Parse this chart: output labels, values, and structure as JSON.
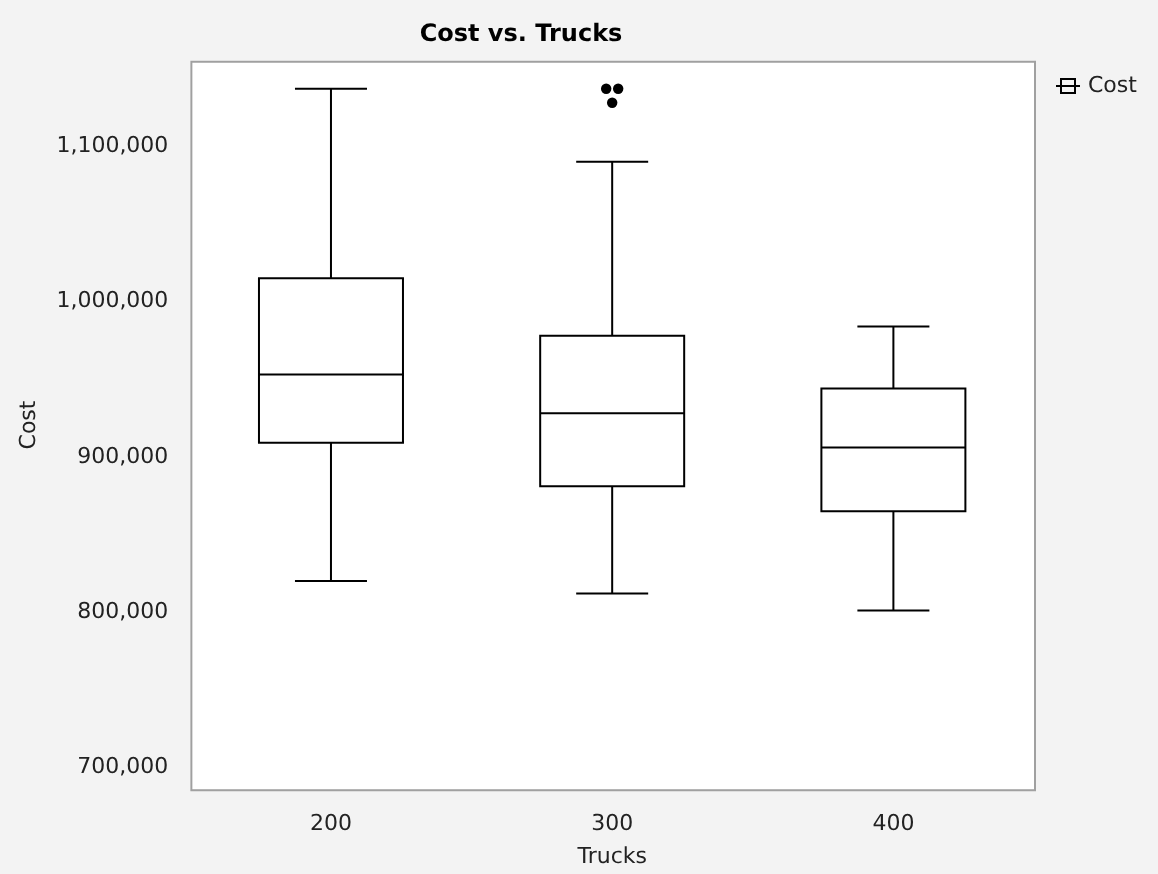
{
  "chart_data": {
    "type": "box",
    "title": "Cost vs. Trucks",
    "xlabel": "Trucks",
    "ylabel": "Cost",
    "categories": [
      "200",
      "300",
      "400"
    ],
    "series": [
      {
        "name": "Cost",
        "color": "#000000",
        "boxes": [
          {
            "low": 820000,
            "q1": 909000,
            "median": 953000,
            "q3": 1015000,
            "high": 1137000
          },
          {
            "low": 812000,
            "q1": 881000,
            "median": 928000,
            "q3": 978000,
            "high": 1090000,
            "outliers": [
              1137000,
              1137000,
              1128000
            ]
          },
          {
            "low": 801000,
            "q1": 865000,
            "median": 906000,
            "q3": 944000,
            "high": 984000
          }
        ]
      }
    ],
    "ylim": [
      686000,
      1155000
    ],
    "yticks": [
      {
        "value": 700000,
        "label": "700,000"
      },
      {
        "value": 800000,
        "label": "800,000"
      },
      {
        "value": 900000,
        "label": "900,000"
      },
      {
        "value": 1000000,
        "label": "1,000,000"
      },
      {
        "value": 1100000,
        "label": "1,100,000"
      }
    ],
    "grid": false,
    "legend": "top right"
  }
}
